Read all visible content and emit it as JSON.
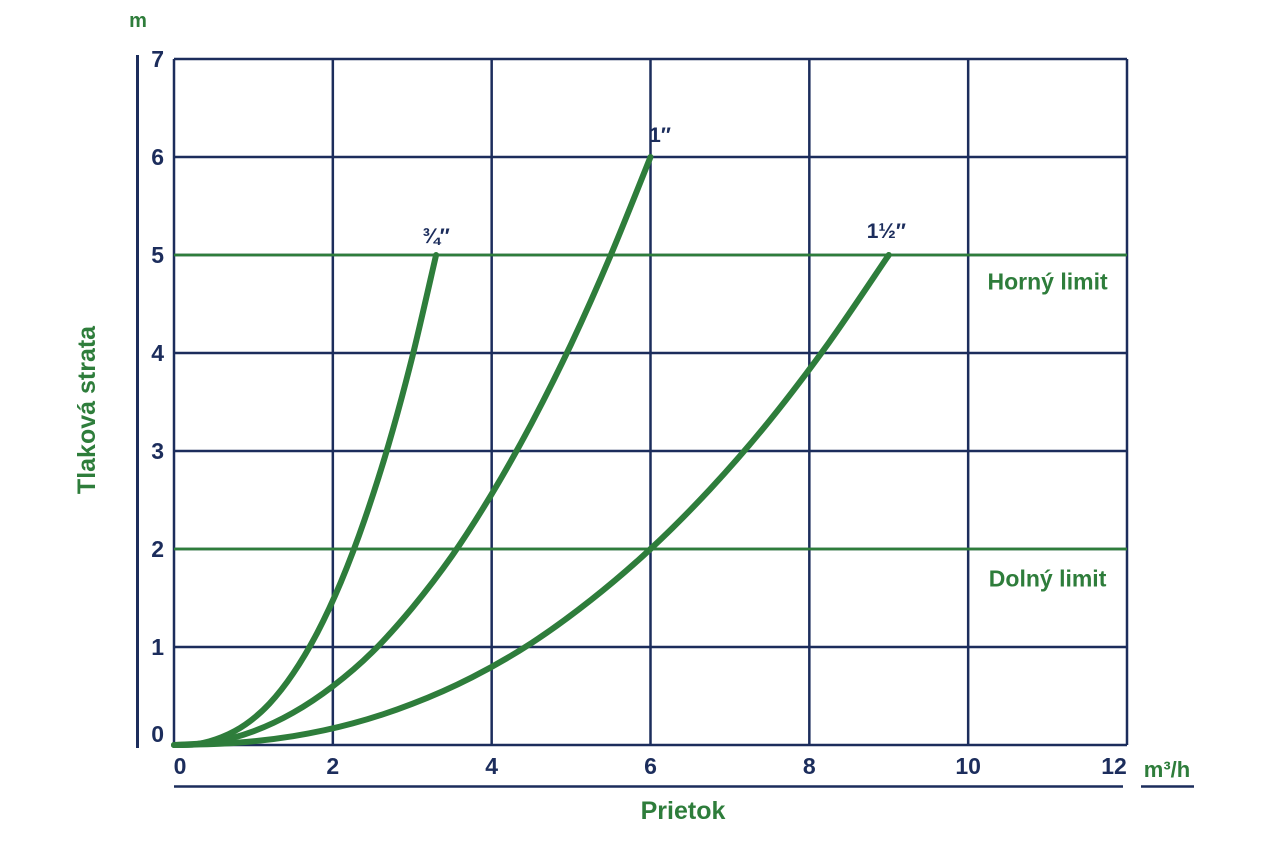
{
  "colors": {
    "navy": "#1c2d5c",
    "green": "#2e7d3b",
    "background": "#ffffff"
  },
  "chart_data": {
    "type": "line",
    "title": "",
    "xlabel": "Prietok",
    "x_unit": "m³/h",
    "ylabel": "Tlaková strata",
    "y_unit": "m",
    "xlim": [
      0,
      12
    ],
    "ylim": [
      0,
      7
    ],
    "xticks": [
      "0",
      "2",
      "4",
      "6",
      "8",
      "10",
      "12"
    ],
    "yticks": [
      "0",
      "1",
      "2",
      "3",
      "4",
      "5",
      "6",
      "7"
    ],
    "grid": true,
    "legend_position": "none",
    "series": [
      {
        "name": "3/4-inch",
        "label": "¾″",
        "label_xy": [
          3.3,
          5.19
        ],
        "x": [
          0,
          0.3,
          0.6,
          0.9,
          1.2,
          1.5,
          1.8,
          2.1,
          2.4,
          2.7,
          3.0,
          3.3
        ],
        "y": [
          0,
          0.01,
          0.08,
          0.21,
          0.42,
          0.73,
          1.14,
          1.66,
          2.3,
          3.06,
          3.96,
          5.0
        ]
      },
      {
        "name": "1-inch",
        "label": "1″",
        "label_xy": [
          6.12,
          6.22
        ],
        "x": [
          0,
          0.5,
          1.0,
          1.5,
          2.0,
          2.5,
          3.0,
          3.5,
          4.0,
          4.5,
          5.0,
          5.5,
          6.0
        ],
        "y": [
          0,
          0.03,
          0.14,
          0.33,
          0.6,
          0.95,
          1.4,
          1.93,
          2.56,
          3.28,
          4.09,
          5.0,
          6.0
        ]
      },
      {
        "name": "1-1/2-inch",
        "label": "1½″",
        "label_xy": [
          8.97,
          5.24
        ],
        "x": [
          0,
          0.75,
          1.5,
          2.25,
          3.0,
          3.75,
          4.5,
          5.25,
          6.0,
          6.75,
          7.5,
          8.25,
          9.0
        ],
        "y": [
          0,
          0.02,
          0.09,
          0.22,
          0.42,
          0.69,
          1.04,
          1.48,
          2.0,
          2.61,
          3.31,
          4.11,
          5.0
        ]
      }
    ],
    "limit_lines": [
      {
        "y": 5,
        "label": "Horný limit",
        "label_xy": [
          11.0,
          4.73
        ]
      },
      {
        "y": 2,
        "label": "Dolný limit",
        "label_xy": [
          11.0,
          1.7
        ]
      }
    ]
  }
}
